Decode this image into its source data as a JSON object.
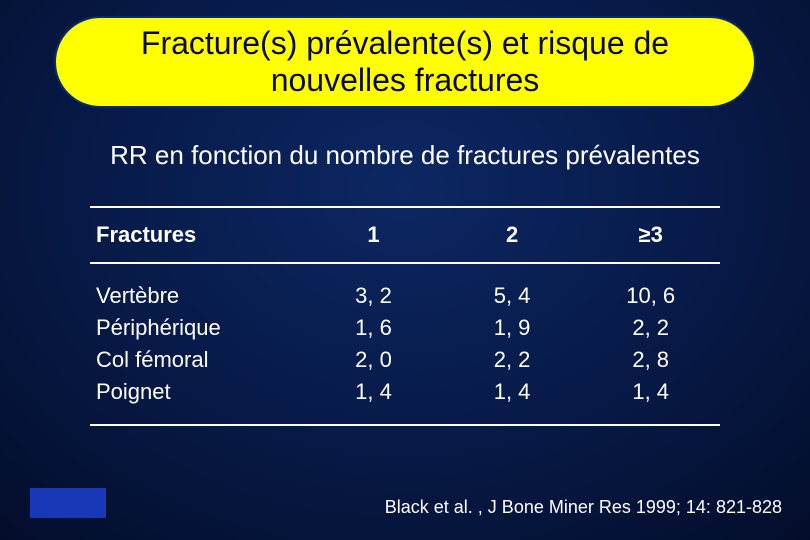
{
  "title": "Fracture(s) prévalente(s) et risque de nouvelles fractures",
  "subtitle": "RR en fonction du nombre de fractures prévalentes",
  "table": {
    "headers": [
      "Fractures",
      "1",
      "2",
      "≥3"
    ],
    "rows": [
      {
        "label": "Vertèbre",
        "c1": "3, 2",
        "c2": "5, 4",
        "c3": "10, 6"
      },
      {
        "label": "Périphérique",
        "c1": "1, 6",
        "c2": "1, 9",
        "c3": "2, 2"
      },
      {
        "label": "Col fémoral",
        "c1": "2, 0",
        "c2": "2, 2",
        "c3": "2, 8"
      },
      {
        "label": "Poignet",
        "c1": "1, 4",
        "c2": "1, 4",
        "c3": "1, 4"
      }
    ]
  },
  "citation": "Black et al. , J Bone Miner Res 1999; 14: 821-828",
  "style": {
    "title_bg": "#ffff00",
    "title_border": "#0a2a6e",
    "title_text_color": "#0a0a33",
    "title_fontsize": 32,
    "subtitle_fontsize": 26,
    "text_color": "#ffffff",
    "table_border_color": "#ffffff",
    "header_fontsize": 22,
    "cell_fontsize": 22,
    "citation_fontsize": 18,
    "blue_box_color": "#1838b8",
    "background_gradient": {
      "center": "#0c2763",
      "mid": "#030c28",
      "edge": "#000000"
    }
  }
}
